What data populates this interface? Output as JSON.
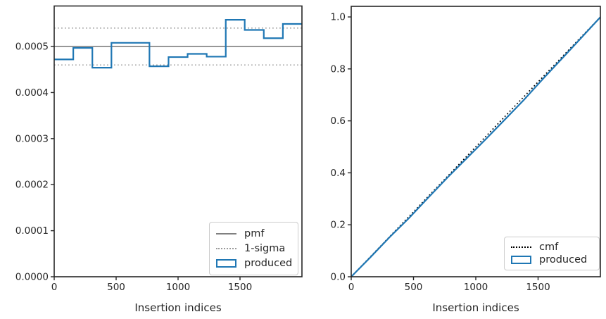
{
  "figure": {
    "background": "#ffffff",
    "axis_color": "#262626",
    "tick_label_color": "#262626"
  },
  "chart_data": [
    {
      "type": "step",
      "title": "",
      "xlabel": "Insertion indices",
      "ylabel": "",
      "xlim": [
        0,
        2000
      ],
      "ylim": [
        0,
        0.000588
      ],
      "grid": false,
      "xticks": {
        "values": [
          0,
          500,
          1000,
          1500
        ],
        "labels": [
          "0",
          "500",
          "1000",
          "1500"
        ]
      },
      "yticks": {
        "values": [
          0,
          0.0001,
          0.0002,
          0.0003,
          0.0004,
          0.0005
        ],
        "labels": [
          "0.0000",
          "0.0001",
          "0.0002",
          "0.0003",
          "0.0004",
          "0.0005"
        ]
      },
      "series": [
        {
          "name": "pmf",
          "type": "hline",
          "y": [
            0.0005
          ],
          "color": "#808080",
          "linestyle": "solid",
          "linewidth": 1.7
        },
        {
          "name": "1-sigma",
          "type": "hline",
          "y": [
            0.00046,
            0.00054
          ],
          "color": "#a3a3a3",
          "linestyle": "dotted",
          "linewidth": 1.5
        },
        {
          "name": "produced",
          "type": "step",
          "color": "#1f77b4",
          "linewidth": 2.2,
          "bin_edges": [
            0,
            154,
            308,
            462,
            615,
            769,
            923,
            1077,
            1231,
            1385,
            1538,
            1692,
            1846,
            2000
          ],
          "values": [
            0.000472,
            0.000497,
            0.000454,
            0.000508,
            0.000508,
            0.000457,
            0.000477,
            0.000484,
            0.000478,
            0.000558,
            0.000536,
            0.000518,
            0.000549
          ]
        }
      ],
      "legend": {
        "location": "lower right",
        "entries": [
          {
            "label": "pmf",
            "swatch": "line-solid-gray"
          },
          {
            "label": "1-sigma",
            "swatch": "line-dotted-gray"
          },
          {
            "label": "produced",
            "swatch": "rect-blue"
          }
        ]
      }
    },
    {
      "type": "line",
      "title": "",
      "xlabel": "Insertion indices",
      "ylabel": "",
      "xlim": [
        0,
        2000
      ],
      "ylim": [
        0,
        1.0408
      ],
      "grid": false,
      "xticks": {
        "values": [
          0,
          500,
          1000,
          1500
        ],
        "labels": [
          "0",
          "500",
          "1000",
          "1500"
        ]
      },
      "yticks": {
        "values": [
          0.0,
          0.2,
          0.4,
          0.6,
          0.8,
          1.0
        ],
        "labels": [
          "0.0",
          "0.2",
          "0.4",
          "0.6",
          "0.8",
          "1.0"
        ]
      },
      "series": [
        {
          "name": "cmf",
          "type": "line",
          "color": "#000000",
          "linestyle": "dotted",
          "linewidth": 1.7,
          "x": [
            0,
            2000
          ],
          "y": [
            0,
            1.0
          ]
        },
        {
          "name": "produced",
          "type": "line",
          "color": "#1f77b4",
          "linestyle": "solid",
          "linewidth": 2.2,
          "x": [
            0,
            154,
            308,
            462,
            615,
            769,
            923,
            1077,
            1231,
            1385,
            1538,
            1692,
            1846,
            2000
          ],
          "y": [
            0,
            0.075,
            0.152,
            0.225,
            0.303,
            0.38,
            0.454,
            0.528,
            0.604,
            0.68,
            0.761,
            0.84,
            0.919,
            0.999
          ]
        }
      ],
      "legend": {
        "location": "lower right",
        "entries": [
          {
            "label": "cmf",
            "swatch": "line-dotted-black"
          },
          {
            "label": "produced",
            "swatch": "rect-blue"
          }
        ]
      }
    }
  ]
}
